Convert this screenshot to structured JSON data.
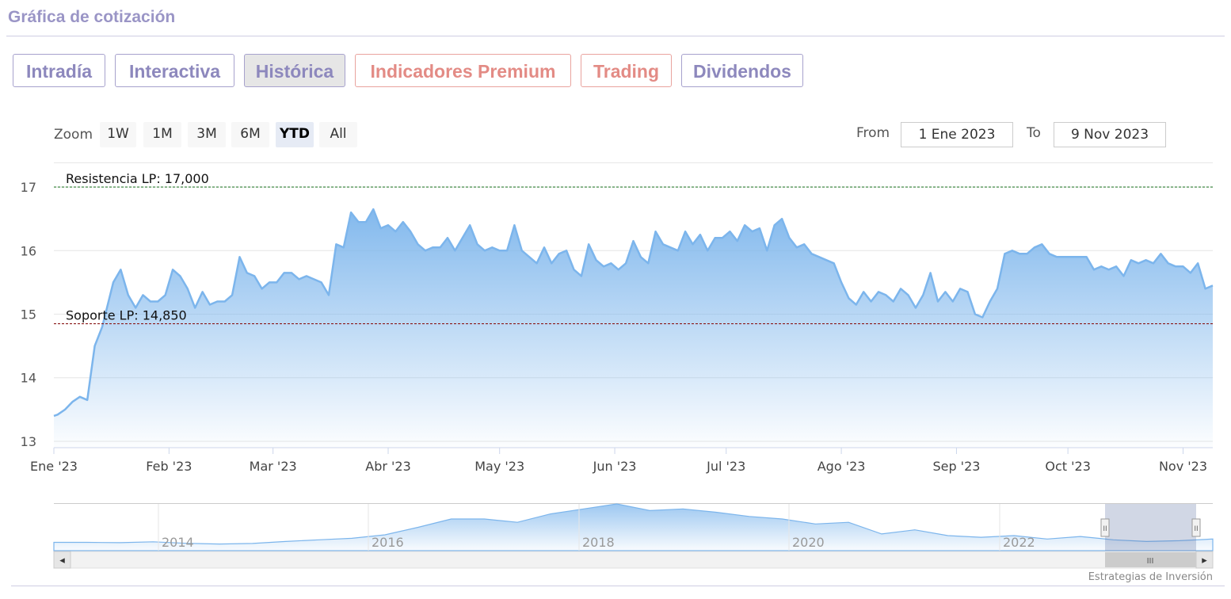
{
  "header": {
    "title": "Gráfica de cotización"
  },
  "tabs": [
    {
      "label": "Intradía",
      "color": "purple",
      "active": false
    },
    {
      "label": "Interactiva",
      "color": "purple",
      "active": false
    },
    {
      "label": "Histórica",
      "color": "purple",
      "active": true
    },
    {
      "label": "Indicadores Premium",
      "color": "red",
      "active": false
    },
    {
      "label": "Trading",
      "color": "red",
      "active": false
    },
    {
      "label": "Dividendos",
      "color": "purple",
      "active": false
    }
  ],
  "range_selector": {
    "zoom_label": "Zoom",
    "buttons": [
      "1W",
      "1M",
      "3M",
      "6M",
      "YTD",
      "All"
    ],
    "selected": "YTD",
    "from_label": "From",
    "from_value": "1 Ene 2023",
    "to_label": "To",
    "to_value": "9 Nov 2023"
  },
  "colors": {
    "series": "#7cb5ec",
    "resistance": "#2e7d32",
    "support": "#8b1a1a",
    "accent_purple": "#8d88bd",
    "accent_red": "#e38b85"
  },
  "chart_data": {
    "type": "area",
    "title": "",
    "xlabel": "",
    "ylabel": "",
    "x_ticks": [
      "Ene '23",
      "Feb '23",
      "Mar '23",
      "Abr '23",
      "May '23",
      "Jun '23",
      "Jul '23",
      "Ago '23",
      "Sep '23",
      "Oct '23",
      "Nov '23"
    ],
    "y_ticks": [
      13,
      14,
      15,
      16,
      17
    ],
    "ylim": [
      12.9,
      17.2
    ],
    "xlim": [
      "2023-01-01",
      "2023-11-09"
    ],
    "grid": true,
    "plot_lines": [
      {
        "label": "Resistencia LP: 17,000",
        "value": 17.0,
        "color": "#2e7d32"
      },
      {
        "label": "Soporte LP: 14,850",
        "value": 14.85,
        "color": "#8b1a1a"
      }
    ],
    "series": [
      {
        "values": [
          [
            "2023-01-01",
            13.4
          ],
          [
            "2023-01-02",
            13.42
          ],
          [
            "2023-01-04",
            13.5
          ],
          [
            "2023-01-06",
            13.62
          ],
          [
            "2023-01-08",
            13.7
          ],
          [
            "2023-01-10",
            13.65
          ],
          [
            "2023-01-12",
            14.5
          ],
          [
            "2023-01-14",
            14.8
          ],
          [
            "2023-01-17",
            15.5
          ],
          [
            "2023-01-19",
            15.7
          ],
          [
            "2023-01-21",
            15.3
          ],
          [
            "2023-01-23",
            15.1
          ],
          [
            "2023-01-25",
            15.3
          ],
          [
            "2023-01-27",
            15.2
          ],
          [
            "2023-01-29",
            15.2
          ],
          [
            "2023-01-31",
            15.3
          ],
          [
            "2023-02-02",
            15.7
          ],
          [
            "2023-02-04",
            15.6
          ],
          [
            "2023-02-06",
            15.4
          ],
          [
            "2023-02-08",
            15.1
          ],
          [
            "2023-02-10",
            15.35
          ],
          [
            "2023-02-12",
            15.15
          ],
          [
            "2023-02-14",
            15.2
          ],
          [
            "2023-02-16",
            15.2
          ],
          [
            "2023-02-18",
            15.3
          ],
          [
            "2023-02-20",
            15.9
          ],
          [
            "2023-02-22",
            15.65
          ],
          [
            "2023-02-24",
            15.6
          ],
          [
            "2023-02-26",
            15.4
          ],
          [
            "2023-02-28",
            15.5
          ],
          [
            "2023-03-02",
            15.5
          ],
          [
            "2023-03-04",
            15.65
          ],
          [
            "2023-03-06",
            15.65
          ],
          [
            "2023-03-08",
            15.55
          ],
          [
            "2023-03-10",
            15.6
          ],
          [
            "2023-03-12",
            15.55
          ],
          [
            "2023-03-14",
            15.5
          ],
          [
            "2023-03-16",
            15.3
          ],
          [
            "2023-03-18",
            16.1
          ],
          [
            "2023-03-20",
            16.05
          ],
          [
            "2023-03-22",
            16.6
          ],
          [
            "2023-03-24",
            16.45
          ],
          [
            "2023-03-26",
            16.45
          ],
          [
            "2023-03-28",
            16.65
          ],
          [
            "2023-03-30",
            16.35
          ],
          [
            "2023-04-01",
            16.4
          ],
          [
            "2023-04-03",
            16.3
          ],
          [
            "2023-04-05",
            16.45
          ],
          [
            "2023-04-07",
            16.3
          ],
          [
            "2023-04-09",
            16.1
          ],
          [
            "2023-04-11",
            16.0
          ],
          [
            "2023-04-13",
            16.05
          ],
          [
            "2023-04-15",
            16.05
          ],
          [
            "2023-04-17",
            16.2
          ],
          [
            "2023-04-19",
            16.0
          ],
          [
            "2023-04-21",
            16.2
          ],
          [
            "2023-04-23",
            16.4
          ],
          [
            "2023-04-25",
            16.1
          ],
          [
            "2023-04-27",
            16.0
          ],
          [
            "2023-04-29",
            16.05
          ],
          [
            "2023-05-01",
            16.0
          ],
          [
            "2023-05-03",
            16.0
          ],
          [
            "2023-05-05",
            16.4
          ],
          [
            "2023-05-07",
            16.0
          ],
          [
            "2023-05-09",
            15.9
          ],
          [
            "2023-05-11",
            15.8
          ],
          [
            "2023-05-13",
            16.05
          ],
          [
            "2023-05-15",
            15.8
          ],
          [
            "2023-05-17",
            15.95
          ],
          [
            "2023-05-19",
            16.0
          ],
          [
            "2023-05-21",
            15.7
          ],
          [
            "2023-05-23",
            15.6
          ],
          [
            "2023-05-25",
            16.1
          ],
          [
            "2023-05-27",
            15.85
          ],
          [
            "2023-05-29",
            15.75
          ],
          [
            "2023-05-31",
            15.8
          ],
          [
            "2023-06-02",
            15.7
          ],
          [
            "2023-06-04",
            15.8
          ],
          [
            "2023-06-06",
            16.15
          ],
          [
            "2023-06-08",
            15.9
          ],
          [
            "2023-06-10",
            15.8
          ],
          [
            "2023-06-12",
            16.3
          ],
          [
            "2023-06-14",
            16.1
          ],
          [
            "2023-06-16",
            16.05
          ],
          [
            "2023-06-18",
            16.0
          ],
          [
            "2023-06-20",
            16.3
          ],
          [
            "2023-06-22",
            16.1
          ],
          [
            "2023-06-24",
            16.25
          ],
          [
            "2023-06-26",
            16.0
          ],
          [
            "2023-06-28",
            16.2
          ],
          [
            "2023-06-30",
            16.2
          ],
          [
            "2023-07-02",
            16.3
          ],
          [
            "2023-07-04",
            16.15
          ],
          [
            "2023-07-06",
            16.4
          ],
          [
            "2023-07-08",
            16.3
          ],
          [
            "2023-07-10",
            16.35
          ],
          [
            "2023-07-12",
            16.0
          ],
          [
            "2023-07-14",
            16.4
          ],
          [
            "2023-07-16",
            16.5
          ],
          [
            "2023-07-18",
            16.2
          ],
          [
            "2023-07-20",
            16.05
          ],
          [
            "2023-07-22",
            16.1
          ],
          [
            "2023-07-24",
            15.95
          ],
          [
            "2023-07-26",
            15.9
          ],
          [
            "2023-07-28",
            15.85
          ],
          [
            "2023-07-30",
            15.8
          ],
          [
            "2023-08-01",
            15.5
          ],
          [
            "2023-08-03",
            15.25
          ],
          [
            "2023-08-05",
            15.15
          ],
          [
            "2023-08-07",
            15.35
          ],
          [
            "2023-08-09",
            15.2
          ],
          [
            "2023-08-11",
            15.35
          ],
          [
            "2023-08-13",
            15.3
          ],
          [
            "2023-08-15",
            15.2
          ],
          [
            "2023-08-17",
            15.4
          ],
          [
            "2023-08-19",
            15.3
          ],
          [
            "2023-08-21",
            15.1
          ],
          [
            "2023-08-23",
            15.3
          ],
          [
            "2023-08-25",
            15.65
          ],
          [
            "2023-08-27",
            15.2
          ],
          [
            "2023-08-29",
            15.35
          ],
          [
            "2023-08-31",
            15.2
          ],
          [
            "2023-09-02",
            15.4
          ],
          [
            "2023-09-04",
            15.35
          ],
          [
            "2023-09-06",
            15.0
          ],
          [
            "2023-09-08",
            14.95
          ],
          [
            "2023-09-10",
            15.2
          ],
          [
            "2023-09-12",
            15.4
          ],
          [
            "2023-09-14",
            15.95
          ],
          [
            "2023-09-16",
            16.0
          ],
          [
            "2023-09-18",
            15.95
          ],
          [
            "2023-09-20",
            15.95
          ],
          [
            "2023-09-22",
            16.05
          ],
          [
            "2023-09-24",
            16.1
          ],
          [
            "2023-09-26",
            15.95
          ],
          [
            "2023-09-28",
            15.9
          ],
          [
            "2023-09-30",
            15.9
          ],
          [
            "2023-10-02",
            15.9
          ],
          [
            "2023-10-04",
            15.9
          ],
          [
            "2023-10-06",
            15.9
          ],
          [
            "2023-10-08",
            15.7
          ],
          [
            "2023-10-10",
            15.75
          ],
          [
            "2023-10-12",
            15.7
          ],
          [
            "2023-10-14",
            15.75
          ],
          [
            "2023-10-16",
            15.6
          ],
          [
            "2023-10-18",
            15.85
          ],
          [
            "2023-10-20",
            15.8
          ],
          [
            "2023-10-22",
            15.85
          ],
          [
            "2023-10-24",
            15.8
          ],
          [
            "2023-10-26",
            15.95
          ],
          [
            "2023-10-28",
            15.8
          ],
          [
            "2023-10-30",
            15.75
          ],
          [
            "2023-11-01",
            15.75
          ],
          [
            "2023-11-03",
            15.65
          ],
          [
            "2023-11-05",
            15.8
          ],
          [
            "2023-11-07",
            15.4
          ],
          [
            "2023-11-09",
            15.45
          ]
        ]
      }
    ]
  },
  "navigator": {
    "year_labels": [
      "2014",
      "2016",
      "2018",
      "2020",
      "2022"
    ],
    "left_arrow": "◂",
    "right_arrow": "▸",
    "thumb_grip": "III",
    "handle_grip": "II"
  },
  "footer": {
    "credit": "Estrategias de Inversión"
  }
}
